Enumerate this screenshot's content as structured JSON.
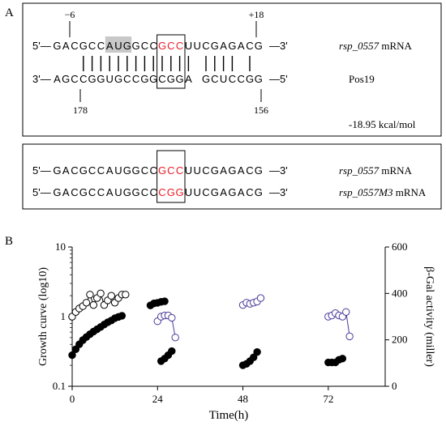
{
  "panelA": {
    "label": "A",
    "box1": {
      "top_prefix": "5'—",
      "top_seq": [
        "G",
        "A",
        "C",
        "G",
        "C",
        "C",
        "A",
        "U",
        "G",
        "G",
        "C",
        "C",
        "G",
        "C",
        "C",
        "U",
        "U",
        "C",
        "G",
        "A",
        "G",
        "A",
        "C",
        "G"
      ],
      "top_suffix": "—3'",
      "top_label_italic": "rsp_0557",
      "top_label_rest": " mRNA",
      "top_marker_left": "−6",
      "top_marker_right": "+18",
      "bottom_prefix": "3'—",
      "bottom_seq": [
        "A",
        "G",
        "C",
        "C",
        "G",
        "G",
        "U",
        "G",
        "C",
        "C",
        "G",
        "G",
        "C",
        "G",
        "G",
        "A",
        " ",
        "G",
        "C",
        "U",
        "C",
        "C",
        "G",
        "G"
      ],
      "bottom_suffix": "—5'",
      "bottom_label": "Pos19",
      "bottom_marker_left": "178",
      "bottom_marker_right": "156",
      "energy": "-18.95 kcal/mol",
      "highlight_color": "#c8c8c8",
      "mutation_color": "#e8202a"
    },
    "box2": {
      "row1_prefix": "5'—",
      "row1_seq": [
        "G",
        "A",
        "C",
        "G",
        "C",
        "C",
        "A",
        "U",
        "G",
        "G",
        "C",
        "C",
        "G",
        "C",
        "C",
        "U",
        "U",
        "C",
        "G",
        "A",
        "G",
        "A",
        "C",
        "G"
      ],
      "row1_suffix": "—3'",
      "row1_label_italic": "rsp_0557",
      "row1_label_rest": " mRNA",
      "row2_prefix": "5'—",
      "row2_seq": [
        "G",
        "A",
        "C",
        "G",
        "C",
        "C",
        "A",
        "U",
        "G",
        "G",
        "C",
        "C",
        "C",
        "G",
        "G",
        "U",
        "U",
        "C",
        "G",
        "A",
        "G",
        "A",
        "C",
        "G"
      ],
      "row2_suffix": "—3'",
      "row2_label_italic": "rsp_0557M3",
      "row2_label_rest": " mRNA"
    }
  },
  "panelB": {
    "label": "B",
    "chart_data": {
      "type": "scatter",
      "xlabel": "Time(h)",
      "ylabel_left": "Growth curve (log10)",
      "ylabel_right": "β-Gal activity (miller)",
      "x_ticks": [
        "0",
        "24",
        "48",
        "72"
      ],
      "x_range": [
        0,
        88
      ],
      "y_left_ticks": [
        "0.1",
        "1",
        "10"
      ],
      "y_left_range": [
        0.1,
        10
      ],
      "y_left_scale": "log",
      "y_right_ticks": [
        "0",
        "200",
        "400",
        "600"
      ],
      "y_right_range": [
        0,
        600
      ],
      "series": [
        {
          "marker": "filled-circle",
          "color": "#000000",
          "axis": "left",
          "x": [
            0,
            1,
            2,
            3,
            4,
            5,
            6,
            7,
            8,
            9,
            10,
            11,
            12,
            13,
            14
          ],
          "y": [
            0.28,
            0.34,
            0.4,
            0.46,
            0.51,
            0.56,
            0.61,
            0.66,
            0.71,
            0.77,
            0.83,
            0.88,
            0.95,
            0.99,
            1.03
          ]
        },
        {
          "marker": "filled-circle",
          "color": "#000000",
          "axis": "left",
          "x": [
            22,
            23,
            24,
            25,
            26
          ],
          "y": [
            1.45,
            1.55,
            1.58,
            1.63,
            1.66
          ]
        },
        {
          "marker": "filled-circle",
          "color": "#000000",
          "axis": "left",
          "x": [
            25,
            26,
            27,
            28
          ],
          "y": [
            0.23,
            0.25,
            0.28,
            0.32
          ]
        },
        {
          "marker": "filled-circle",
          "color": "#000000",
          "axis": "left",
          "x": [
            48,
            49,
            50,
            51,
            52
          ],
          "y": [
            0.2,
            0.21,
            0.23,
            0.26,
            0.31
          ]
        },
        {
          "marker": "filled-circle",
          "color": "#000000",
          "axis": "left",
          "x": [
            72,
            73,
            74,
            75,
            76
          ],
          "y": [
            0.22,
            0.22,
            0.22,
            0.24,
            0.25
          ]
        },
        {
          "marker": "open-circle",
          "color": "#000000",
          "axis": "right",
          "x": [
            0,
            1,
            2,
            3,
            4,
            5,
            6,
            7,
            8,
            9,
            10,
            11,
            12,
            13,
            14,
            15
          ],
          "y": [
            300,
            320,
            335,
            345,
            360,
            395,
            350,
            380,
            400,
            350,
            370,
            390,
            360,
            380,
            395,
            395
          ]
        },
        {
          "marker": "open-circle",
          "color": "#4a3c9a",
          "axis": "right",
          "x": [
            24,
            25,
            26,
            27,
            28,
            29
          ],
          "y": [
            280,
            300,
            305,
            305,
            295,
            210
          ]
        },
        {
          "marker": "open-circle",
          "color": "#4a3c9a",
          "axis": "right",
          "x": [
            48,
            49,
            50,
            51,
            52,
            53
          ],
          "y": [
            350,
            360,
            355,
            360,
            365,
            380
          ]
        },
        {
          "marker": "open-circle",
          "color": "#4a3c9a",
          "axis": "right",
          "x": [
            72,
            73,
            74,
            75,
            76,
            77,
            78
          ],
          "y": [
            300,
            305,
            315,
            305,
            300,
            320,
            215
          ]
        }
      ]
    }
  }
}
